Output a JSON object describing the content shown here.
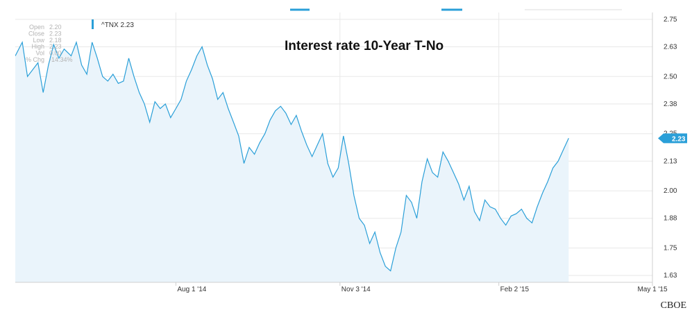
{
  "chart_data": {
    "type": "area",
    "title": "Interest rate 10-Year T-No",
    "source": "CBOE",
    "legend": {
      "symbol_label": "^TNX 2.23",
      "color": "#2a9fd8"
    },
    "last_value_label": "2.23",
    "colors": {
      "line": "#2a9fd8",
      "fill": "#eaf4fb",
      "grid": "#e8e8e8",
      "badge": "#2a9fd8"
    },
    "ohlc_panel": {
      "rows": [
        {
          "label": "Open",
          "value": "2.20"
        },
        {
          "label": "Close",
          "value": "2.23"
        },
        {
          "label": "Low",
          "value": "2.18"
        },
        {
          "label": "High",
          "value": "2.23"
        },
        {
          "label": "Vol",
          "value": "0.00"
        },
        {
          "label": "% Chg",
          "value": "-14.34%"
        }
      ]
    },
    "y_axis": {
      "ticks": [
        "2.75",
        "2.63",
        "2.50",
        "2.38",
        "2.25",
        "2.13",
        "2.00",
        "1.88",
        "1.75",
        "1.63"
      ],
      "range": [
        1.6,
        2.78
      ]
    },
    "x_axis": {
      "labels": [
        "Aug 1 '14",
        "Nov 3 '14",
        "Feb 2 '15",
        "May 1 '15"
      ],
      "label_dates": [
        "2014-08-01",
        "2014-11-03",
        "2015-02-02",
        "2015-05-01"
      ],
      "range": [
        "2014-05-01",
        "2015-05-01"
      ]
    },
    "series": [
      {
        "points": [
          [
            "2014-05-01",
            2.59
          ],
          [
            "2014-05-05",
            2.65
          ],
          [
            "2014-05-08",
            2.5
          ],
          [
            "2014-05-11",
            2.53
          ],
          [
            "2014-05-14",
            2.56
          ],
          [
            "2014-05-17",
            2.43
          ],
          [
            "2014-05-20",
            2.55
          ],
          [
            "2014-05-23",
            2.64
          ],
          [
            "2014-05-26",
            2.58
          ],
          [
            "2014-05-29",
            2.62
          ],
          [
            "2014-06-02",
            2.59
          ],
          [
            "2014-06-05",
            2.65
          ],
          [
            "2014-06-08",
            2.55
          ],
          [
            "2014-06-11",
            2.51
          ],
          [
            "2014-06-14",
            2.65
          ],
          [
            "2014-06-17",
            2.58
          ],
          [
            "2014-06-20",
            2.5
          ],
          [
            "2014-06-23",
            2.48
          ],
          [
            "2014-06-26",
            2.51
          ],
          [
            "2014-06-29",
            2.47
          ],
          [
            "2014-07-02",
            2.48
          ],
          [
            "2014-07-05",
            2.58
          ],
          [
            "2014-07-08",
            2.5
          ],
          [
            "2014-07-11",
            2.43
          ],
          [
            "2014-07-14",
            2.38
          ],
          [
            "2014-07-17",
            2.3
          ],
          [
            "2014-07-20",
            2.39
          ],
          [
            "2014-07-23",
            2.36
          ],
          [
            "2014-07-26",
            2.38
          ],
          [
            "2014-07-29",
            2.32
          ],
          [
            "2014-08-01",
            2.36
          ],
          [
            "2014-08-04",
            2.4
          ],
          [
            "2014-08-07",
            2.48
          ],
          [
            "2014-08-10",
            2.53
          ],
          [
            "2014-08-13",
            2.59
          ],
          [
            "2014-08-16",
            2.63
          ],
          [
            "2014-08-19",
            2.55
          ],
          [
            "2014-08-22",
            2.49
          ],
          [
            "2014-08-25",
            2.4
          ],
          [
            "2014-08-28",
            2.43
          ],
          [
            "2014-08-31",
            2.36
          ],
          [
            "2014-09-03",
            2.3
          ],
          [
            "2014-09-06",
            2.24
          ],
          [
            "2014-09-09",
            2.12
          ],
          [
            "2014-09-12",
            2.19
          ],
          [
            "2014-09-15",
            2.16
          ],
          [
            "2014-09-18",
            2.21
          ],
          [
            "2014-09-21",
            2.25
          ],
          [
            "2014-09-24",
            2.31
          ],
          [
            "2014-09-27",
            2.35
          ],
          [
            "2014-09-30",
            2.37
          ],
          [
            "2014-10-03",
            2.34
          ],
          [
            "2014-10-06",
            2.29
          ],
          [
            "2014-10-09",
            2.33
          ],
          [
            "2014-10-12",
            2.26
          ],
          [
            "2014-10-15",
            2.2
          ],
          [
            "2014-10-18",
            2.15
          ],
          [
            "2014-10-21",
            2.2
          ],
          [
            "2014-10-24",
            2.25
          ],
          [
            "2014-10-27",
            2.12
          ],
          [
            "2014-10-30",
            2.06
          ],
          [
            "2014-11-02",
            2.1
          ],
          [
            "2014-11-05",
            2.24
          ],
          [
            "2014-11-08",
            2.12
          ],
          [
            "2014-11-11",
            1.98
          ],
          [
            "2014-11-14",
            1.88
          ],
          [
            "2014-11-17",
            1.85
          ],
          [
            "2014-11-20",
            1.77
          ],
          [
            "2014-11-23",
            1.82
          ],
          [
            "2014-11-26",
            1.73
          ],
          [
            "2014-11-29",
            1.67
          ],
          [
            "2014-12-02",
            1.65
          ],
          [
            "2014-12-05",
            1.75
          ],
          [
            "2014-12-08",
            1.82
          ],
          [
            "2014-12-11",
            1.98
          ],
          [
            "2014-12-14",
            1.95
          ],
          [
            "2014-12-17",
            1.88
          ],
          [
            "2014-12-20",
            2.04
          ],
          [
            "2014-12-23",
            2.14
          ],
          [
            "2014-12-26",
            2.08
          ],
          [
            "2014-12-29",
            2.06
          ],
          [
            "2015-01-01",
            2.17
          ],
          [
            "2015-01-04",
            2.13
          ],
          [
            "2015-01-07",
            2.08
          ],
          [
            "2015-01-10",
            2.03
          ],
          [
            "2015-01-13",
            1.96
          ],
          [
            "2015-01-16",
            2.02
          ],
          [
            "2015-01-19",
            1.91
          ],
          [
            "2015-01-22",
            1.87
          ],
          [
            "2015-01-25",
            1.96
          ],
          [
            "2015-01-28",
            1.93
          ],
          [
            "2015-01-31",
            1.92
          ],
          [
            "2015-02-03",
            1.88
          ],
          [
            "2015-02-06",
            1.85
          ],
          [
            "2015-02-09",
            1.89
          ],
          [
            "2015-02-12",
            1.9
          ],
          [
            "2015-02-15",
            1.92
          ],
          [
            "2015-02-18",
            1.88
          ],
          [
            "2015-02-21",
            1.86
          ],
          [
            "2015-02-24",
            1.93
          ],
          [
            "2015-02-27",
            1.99
          ],
          [
            "2015-03-02",
            2.04
          ],
          [
            "2015-03-05",
            2.1
          ],
          [
            "2015-03-08",
            2.13
          ],
          [
            "2015-03-11",
            2.18
          ],
          [
            "2015-03-14",
            2.23
          ]
        ]
      }
    ]
  }
}
